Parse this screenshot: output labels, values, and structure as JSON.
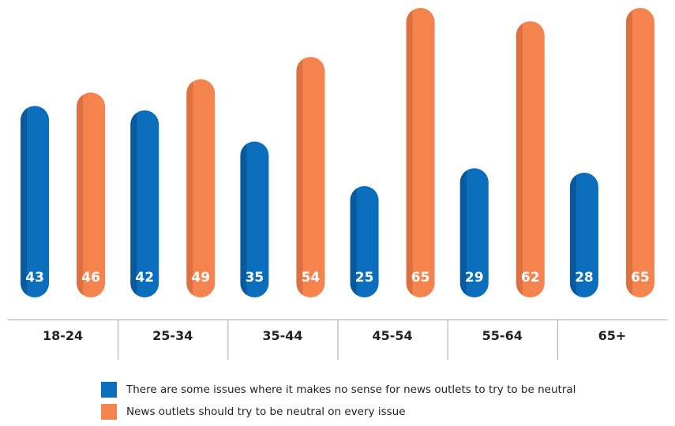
{
  "chart_data": {
    "type": "bar",
    "categories": [
      "18-24",
      "25-34",
      "35-44",
      "45-54",
      "55-64",
      "65+"
    ],
    "series": [
      {
        "name": "There are some issues where it makes no sense for news outlets to try to be neutral",
        "values": [
          43,
          42,
          35,
          25,
          29,
          28
        ],
        "color": "#0a6ebd",
        "shade": "#085a9c"
      },
      {
        "name": "News outlets should try to be neutral on every issue",
        "values": [
          46,
          49,
          54,
          65,
          62,
          65
        ],
        "color": "#f5834d",
        "shade": "#dc7040"
      }
    ],
    "ylim": [
      0,
      65
    ],
    "grid": false,
    "legend_position": "bottom"
  }
}
